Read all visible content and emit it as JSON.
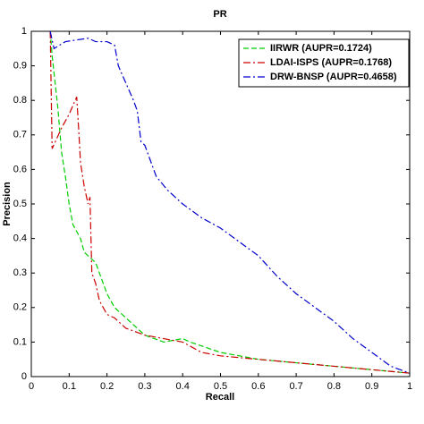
{
  "chart_data": {
    "type": "line",
    "title": "PR",
    "x_label": "Recall",
    "y_label": "Precision",
    "xlim": [
      0,
      1
    ],
    "ylim": [
      0,
      1
    ],
    "xticks": [
      0,
      0.1,
      0.2,
      0.3,
      0.4,
      0.5,
      0.6,
      0.7,
      0.8,
      0.9,
      1
    ],
    "yticks": [
      0,
      0.1,
      0.2,
      0.3,
      0.4,
      0.5,
      0.6,
      0.7,
      0.8,
      0.9,
      1
    ],
    "grid": false,
    "legend": "upper right",
    "series": [
      {
        "name": "IIRWR (AUPR=0.1724)",
        "color": "#00cc00",
        "dash": "6,3",
        "x": [
          0.05,
          0.055,
          0.07,
          0.08,
          0.09,
          0.1,
          0.11,
          0.12,
          0.13,
          0.14,
          0.15,
          0.17,
          0.18,
          0.2,
          0.22,
          0.25,
          0.28,
          0.3,
          0.35,
          0.4,
          0.42,
          0.5,
          0.6,
          0.7,
          0.8,
          0.9,
          1.0
        ],
        "values": [
          1.0,
          0.93,
          0.78,
          0.65,
          0.58,
          0.5,
          0.44,
          0.42,
          0.4,
          0.36,
          0.35,
          0.33,
          0.3,
          0.24,
          0.2,
          0.17,
          0.14,
          0.12,
          0.1,
          0.11,
          0.1,
          0.07,
          0.05,
          0.04,
          0.03,
          0.02,
          0.01
        ]
      },
      {
        "name": "LDAI-ISPS (AUPR=0.1768)",
        "color": "#cc0000",
        "dash": "8,3,2,3",
        "x": [
          0.05,
          0.055,
          0.08,
          0.1,
          0.12,
          0.125,
          0.13,
          0.14,
          0.15,
          0.155,
          0.16,
          0.17,
          0.18,
          0.2,
          0.22,
          0.25,
          0.3,
          0.35,
          0.4,
          0.45,
          0.5,
          0.6,
          0.7,
          0.8,
          0.9,
          1.0
        ],
        "values": [
          1.0,
          0.66,
          0.72,
          0.76,
          0.81,
          0.72,
          0.62,
          0.55,
          0.5,
          0.52,
          0.3,
          0.27,
          0.22,
          0.18,
          0.17,
          0.14,
          0.12,
          0.11,
          0.1,
          0.07,
          0.06,
          0.05,
          0.04,
          0.03,
          0.02,
          0.01
        ]
      },
      {
        "name": "DRW-BNSP (AUPR=0.4658)",
        "color": "#0000cc",
        "dash": "8,3,2,3",
        "x": [
          0.05,
          0.06,
          0.09,
          0.12,
          0.15,
          0.17,
          0.2,
          0.22,
          0.23,
          0.25,
          0.27,
          0.28,
          0.29,
          0.3,
          0.33,
          0.36,
          0.4,
          0.45,
          0.5,
          0.55,
          0.6,
          0.65,
          0.7,
          0.75,
          0.8,
          0.85,
          0.9,
          0.95,
          1.0
        ],
        "values": [
          1.0,
          0.95,
          0.97,
          0.975,
          0.98,
          0.97,
          0.97,
          0.96,
          0.9,
          0.85,
          0.8,
          0.77,
          0.68,
          0.67,
          0.58,
          0.54,
          0.5,
          0.46,
          0.43,
          0.39,
          0.35,
          0.29,
          0.24,
          0.2,
          0.16,
          0.11,
          0.07,
          0.03,
          0.01
        ]
      }
    ]
  }
}
